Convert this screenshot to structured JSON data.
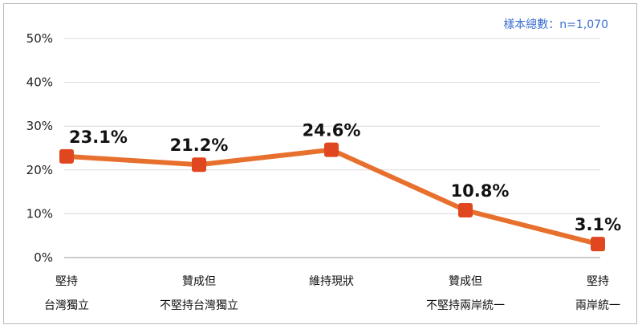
{
  "chart_data": {
    "type": "line",
    "title": "",
    "note": "樣本總數：n=1,070",
    "categories": [
      [
        "堅持",
        "台灣獨立"
      ],
      [
        "贊成但",
        "不堅持台灣獨立"
      ],
      [
        "維持現狀"
      ],
      [
        "贊成但",
        "不堅持兩岸統一"
      ],
      [
        "堅持",
        "兩岸統一"
      ]
    ],
    "series": [
      {
        "values": [
          23.1,
          21.2,
          24.6,
          10.8,
          3.1
        ],
        "labels": [
          "23.1%",
          "21.2%",
          "24.6%",
          "10.8%",
          "3.1%"
        ]
      }
    ],
    "ylim": [
      0,
      50
    ],
    "yticks": [
      "0%",
      "10%",
      "20%",
      "30%",
      "40%",
      "50%"
    ],
    "grid": true,
    "line_color": "#e8702e",
    "marker_color": "#e0461f"
  }
}
